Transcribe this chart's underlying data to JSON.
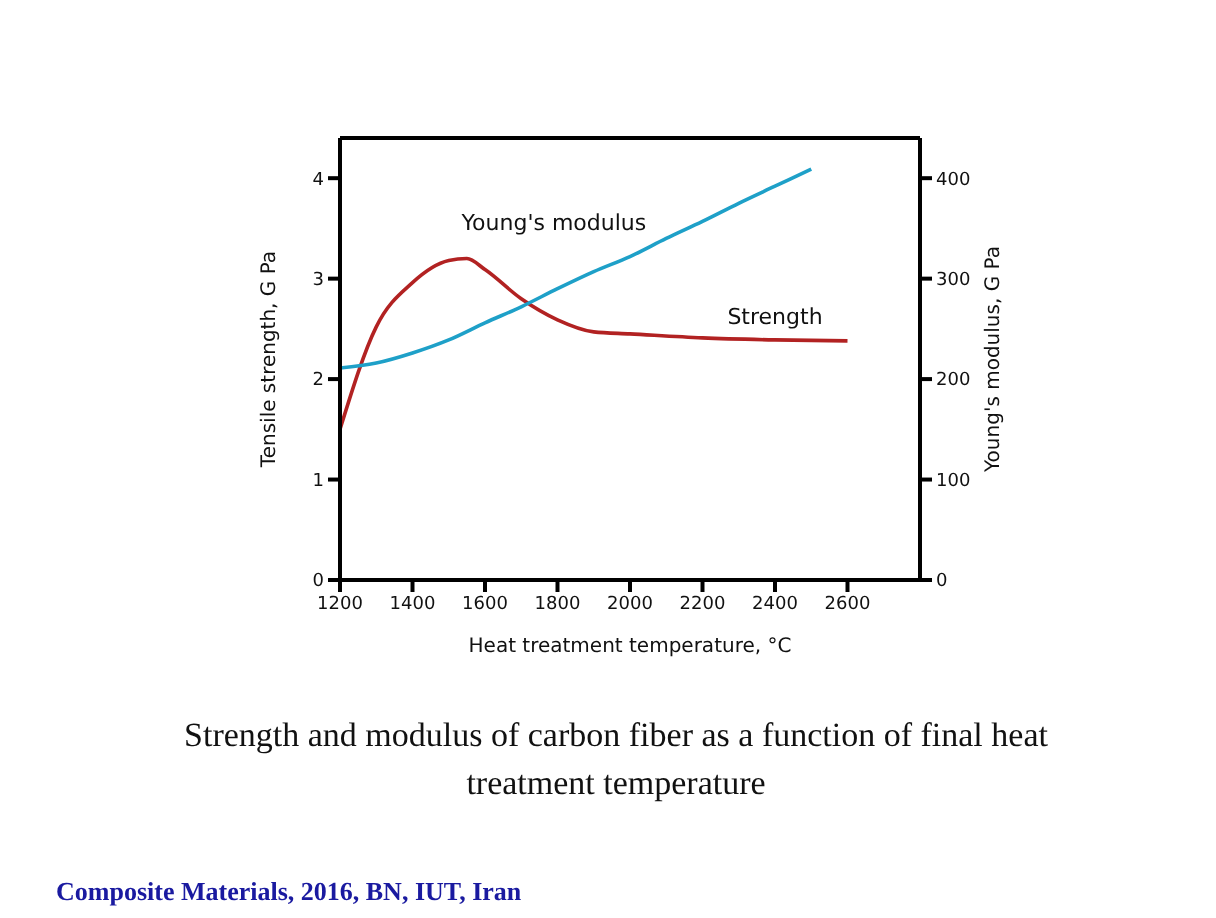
{
  "chart_data": {
    "type": "line",
    "title": "Strength and modulus of carbon fiber as a function of final heat treatment temperature",
    "xlabel": "Heat treatment temperature, °C",
    "ylabel": "Tensile strength, G Pa",
    "y2label": "Young's modulus, G Pa",
    "annotations": [
      "Composite Materials, 2016, BN, IUT, Iran"
    ],
    "xlim": [
      1200,
      2800
    ],
    "xticks": [
      1200,
      1400,
      1600,
      1800,
      2000,
      2200,
      2400,
      2600
    ],
    "ylim": [
      0,
      4.4
    ],
    "yticks": [
      0,
      1,
      2,
      3,
      4
    ],
    "y2lim": [
      0,
      440
    ],
    "y2ticks": [
      0,
      100,
      200,
      300,
      400
    ],
    "legend": false,
    "marker": "none",
    "line_style": "solid",
    "series": [
      {
        "name": "Strength",
        "color": "#b22222",
        "axis": "y",
        "x": [
          1200,
          1300,
          1400,
          1500,
          1550,
          1600,
          1700,
          1800,
          1900,
          2000,
          2200,
          2400,
          2600
        ],
        "values": [
          1.5,
          2.52,
          2.96,
          3.18,
          3.2,
          3.09,
          2.8,
          2.59,
          2.47,
          2.45,
          2.41,
          2.39,
          2.38
        ]
      },
      {
        "name": "Young's modulus",
        "color": "#1ea0c8",
        "axis": "y2",
        "x": [
          1200,
          1300,
          1400,
          1500,
          1600,
          1700,
          1800,
          1900,
          2000,
          2100,
          2200,
          2300,
          2400,
          2500
        ],
        "values": [
          211,
          216,
          226,
          239,
          256,
          272,
          290,
          307,
          322,
          340,
          357,
          375,
          392,
          409
        ]
      }
    ]
  }
}
